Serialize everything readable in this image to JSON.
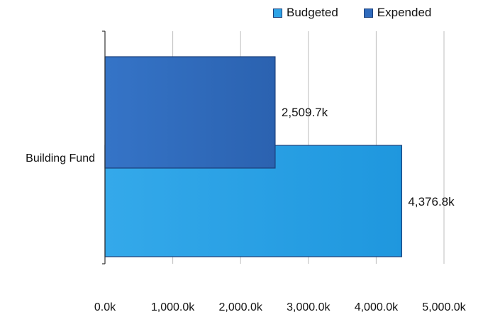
{
  "chart_data": {
    "type": "bar",
    "orientation": "horizontal",
    "categories": [
      "Building Fund"
    ],
    "series": [
      {
        "name": "Budgeted",
        "values": [
          4376.8
        ],
        "color": "#2ea3e6"
      },
      {
        "name": "Expended",
        "values": [
          2509.7
        ],
        "color": "#2f6bbd"
      }
    ],
    "data_labels": [
      "4,376.8k",
      "2,509.7k"
    ],
    "xlim": [
      0,
      5000
    ],
    "x_ticks": [
      0,
      1000,
      2000,
      3000,
      4000,
      5000
    ],
    "x_tick_labels": [
      "0.0k",
      "1,000.0k",
      "2,000.0k",
      "3,000.0k",
      "4,000.0k",
      "5,000.0k"
    ],
    "grid": true,
    "legend_position": "top-right"
  }
}
